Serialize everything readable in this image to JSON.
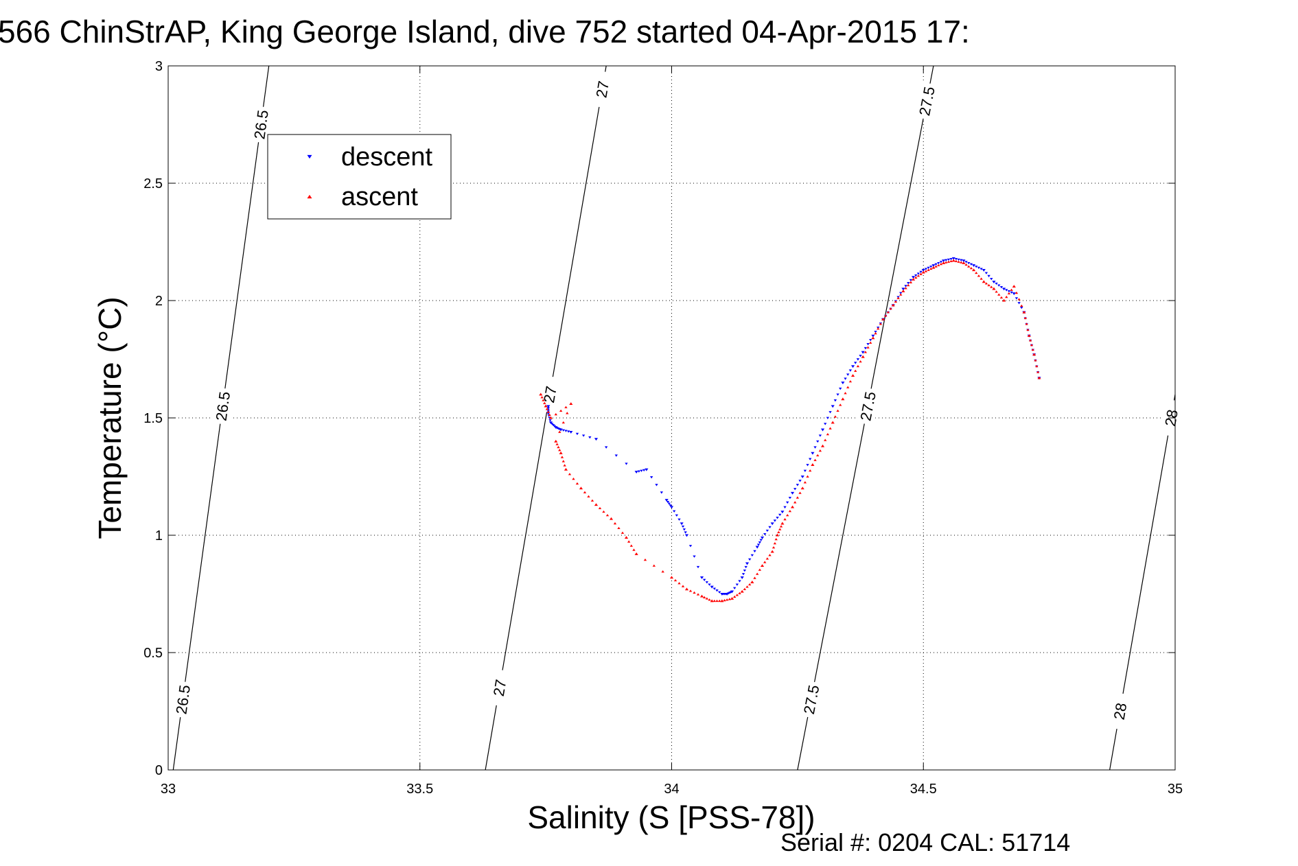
{
  "chart_data": {
    "type": "scatter",
    "title": "566 ChinStrAP, King George Island, dive 752 started 04-Apr-2015 17:",
    "xlabel": "Salinity (S [PSS-78])",
    "ylabel": "Temperature (°C)",
    "xlim": [
      33,
      35
    ],
    "ylim": [
      0,
      3
    ],
    "x_ticks": [
      33,
      33.5,
      34,
      34.5,
      35
    ],
    "x_tick_labels": [
      "33",
      "33.5",
      "34",
      "34.5",
      "35"
    ],
    "y_ticks": [
      0,
      0.5,
      1,
      1.5,
      2,
      2.5,
      3
    ],
    "y_tick_labels": [
      "0",
      "0.5",
      "1",
      "1.5",
      "2",
      "2.5",
      "3"
    ],
    "grid": true,
    "legend_position": "top-left",
    "series": [
      {
        "name": "descent",
        "color": "#0000ff",
        "marker": "triangle-down",
        "x": [
          33.755,
          33.755,
          33.76,
          33.77,
          33.78,
          33.8,
          33.85,
          33.93,
          33.95,
          33.99,
          34.0,
          34.02,
          34.03,
          34.06,
          34.08,
          34.1,
          34.11,
          34.12,
          34.14,
          34.15,
          34.17,
          34.18,
          34.2,
          34.22,
          34.24,
          34.26,
          34.28,
          34.3,
          34.32,
          34.34,
          34.36,
          34.38,
          34.4,
          34.42,
          34.44,
          34.46,
          34.48,
          34.5,
          34.52,
          34.54,
          34.56,
          34.58,
          34.6,
          34.62,
          34.64,
          34.66,
          34.68,
          34.7,
          34.71,
          34.72,
          34.73
        ],
        "y": [
          1.55,
          1.52,
          1.48,
          1.46,
          1.45,
          1.44,
          1.41,
          1.27,
          1.28,
          1.15,
          1.12,
          1.05,
          1.0,
          0.82,
          0.78,
          0.75,
          0.75,
          0.76,
          0.82,
          0.88,
          0.95,
          0.99,
          1.05,
          1.1,
          1.18,
          1.25,
          1.35,
          1.45,
          1.55,
          1.65,
          1.72,
          1.78,
          1.85,
          1.92,
          1.98,
          2.05,
          2.1,
          2.13,
          2.15,
          2.17,
          2.18,
          2.17,
          2.15,
          2.13,
          2.08,
          2.05,
          2.03,
          1.95,
          1.85,
          1.77,
          1.67
        ]
      },
      {
        "name": "ascent",
        "color": "#ff0000",
        "marker": "triangle-up",
        "x": [
          33.74,
          33.75,
          33.76,
          33.8,
          33.77,
          33.78,
          33.79,
          33.82,
          33.85,
          33.88,
          33.91,
          33.93,
          34.0,
          34.03,
          34.06,
          34.08,
          34.1,
          34.12,
          34.14,
          34.16,
          34.18,
          34.2,
          34.21,
          34.22,
          34.24,
          34.26,
          34.28,
          34.3,
          34.32,
          34.34,
          34.36,
          34.38,
          34.4,
          34.42,
          34.44,
          34.46,
          34.48,
          34.5,
          34.52,
          34.54,
          34.56,
          34.58,
          34.6,
          34.62,
          34.64,
          34.66,
          34.68,
          34.7,
          34.71,
          34.72,
          34.73
        ],
        "y": [
          1.6,
          1.55,
          1.5,
          1.56,
          1.4,
          1.35,
          1.28,
          1.2,
          1.13,
          1.07,
          0.99,
          0.92,
          0.82,
          0.77,
          0.74,
          0.72,
          0.72,
          0.73,
          0.76,
          0.8,
          0.87,
          0.93,
          1.0,
          1.05,
          1.12,
          1.2,
          1.3,
          1.38,
          1.48,
          1.58,
          1.68,
          1.76,
          1.84,
          1.92,
          1.98,
          2.04,
          2.09,
          2.12,
          2.14,
          2.16,
          2.17,
          2.16,
          2.13,
          2.08,
          2.05,
          2.0,
          2.06,
          1.95,
          1.85,
          1.77,
          1.67
        ]
      }
    ],
    "contours": [
      {
        "label": "26.5",
        "points": [
          [
            33.01,
            0
          ],
          [
            33.2,
            3
          ]
        ],
        "label_y": [
          0.3,
          1.55,
          2.75
        ]
      },
      {
        "label": "27",
        "points": [
          [
            33.63,
            0
          ],
          [
            33.87,
            3
          ]
        ],
        "label_y": [
          0.35,
          1.6,
          2.9
        ]
      },
      {
        "label": "27.5",
        "points": [
          [
            34.25,
            0
          ],
          [
            34.52,
            3
          ]
        ],
        "label_y": [
          0.3,
          1.55,
          2.85
        ]
      },
      {
        "label": "28",
        "points": [
          [
            34.87,
            0
          ],
          [
            35.0,
            1.6
          ]
        ],
        "label_y": [
          0.25,
          1.5
        ]
      }
    ]
  },
  "footer": {
    "serial_text": "Serial #: 0204  CAL: 51714"
  }
}
